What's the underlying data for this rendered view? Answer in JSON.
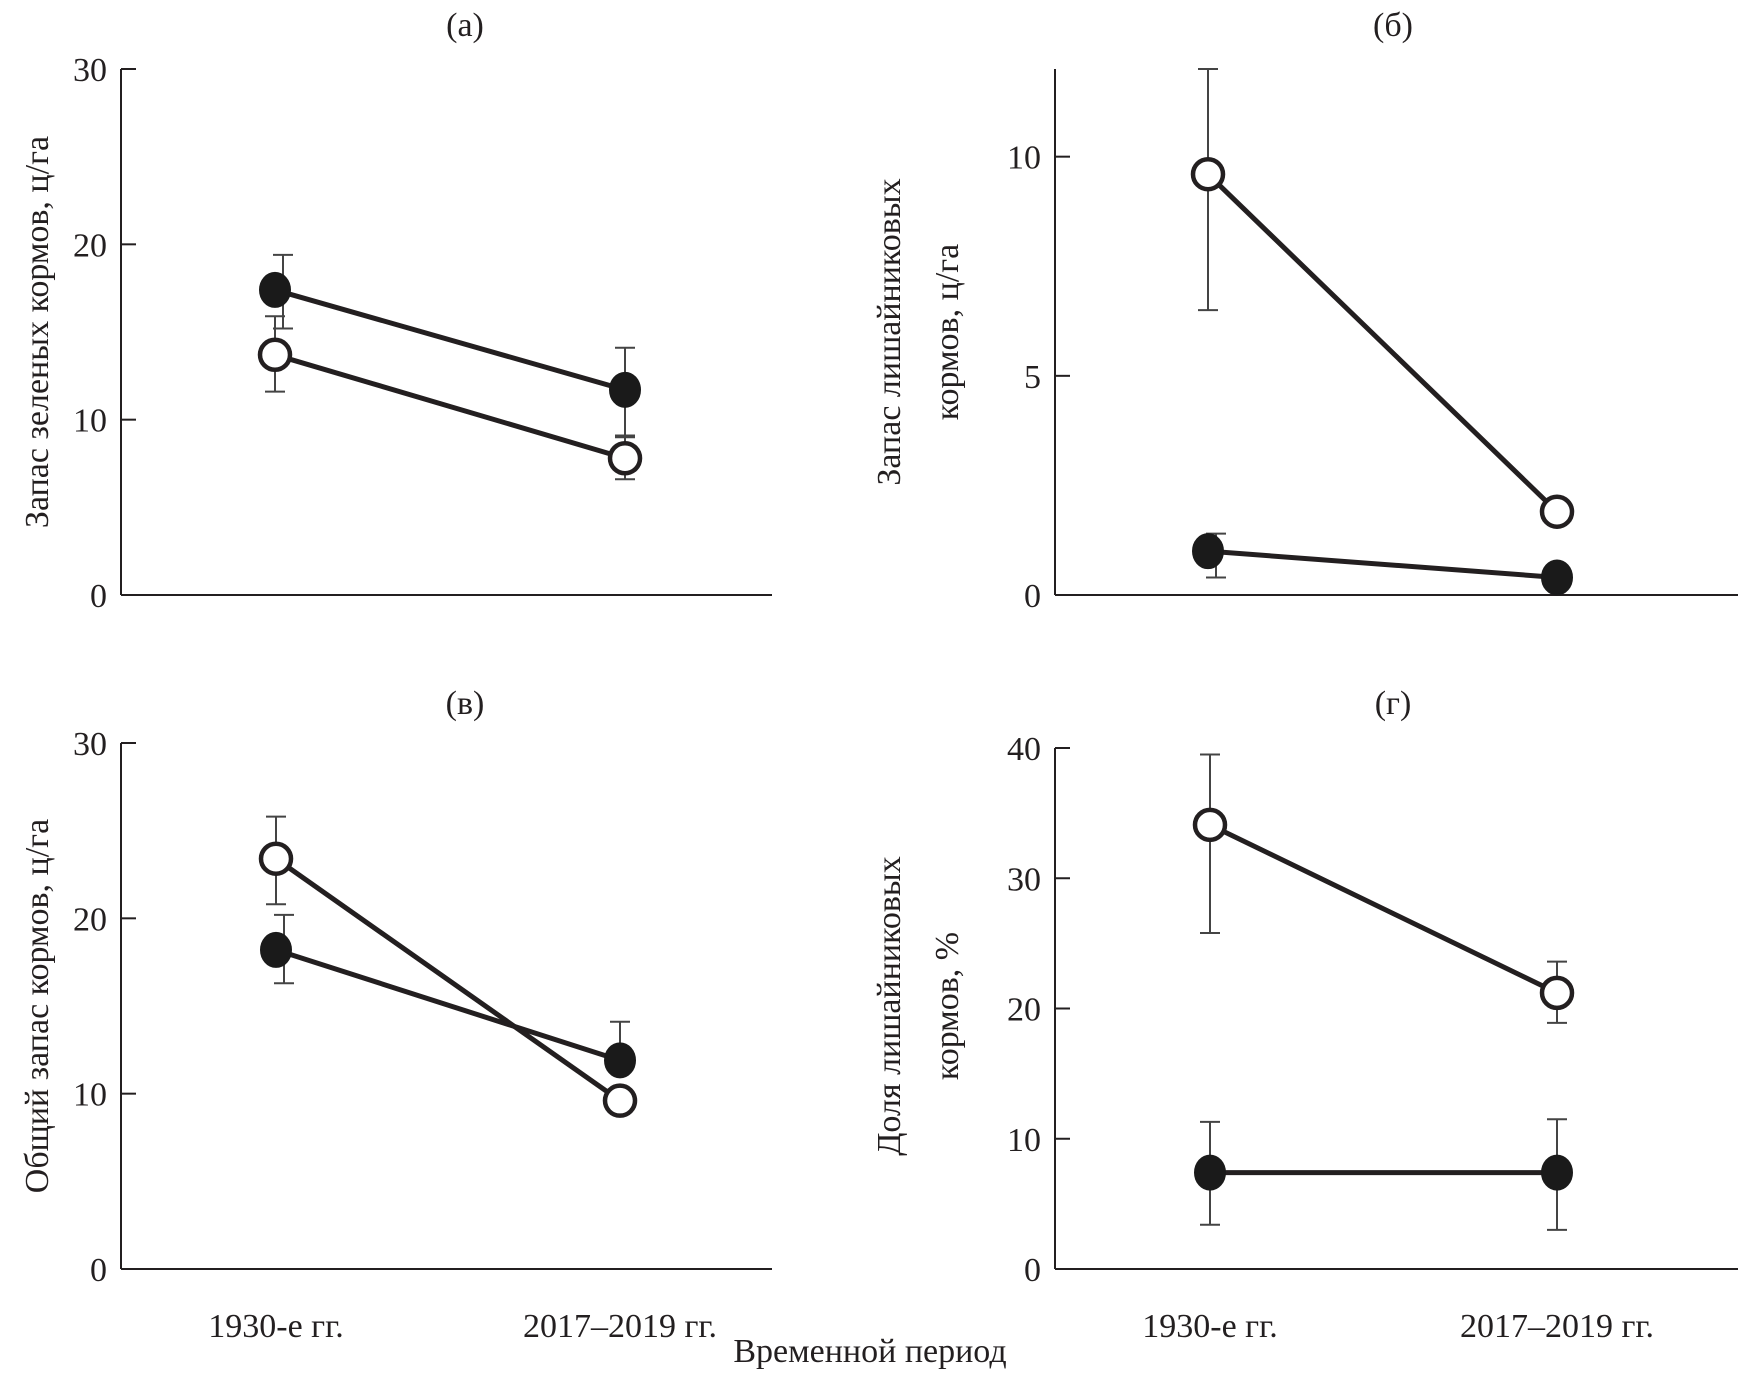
{
  "chart_data": {
    "type": "line",
    "xlabel": "Временной период",
    "categories": [
      "1930-е гг.",
      "2017–2019 гг."
    ],
    "panels": [
      {
        "id": "a",
        "title": "(а)",
        "ylabel": [
          "Запас зеленых кормов, ц/га"
        ],
        "ylim": [
          0,
          30
        ],
        "yticks": [
          0,
          10,
          20,
          30
        ],
        "show_category_labels": false,
        "series": [
          {
            "name": "filled",
            "marker": "filled-circle",
            "values": [
              17.4,
              11.7
            ],
            "err_low": [
              15.2,
              9.1
            ],
            "err_high": [
              19.4,
              14.1
            ]
          },
          {
            "name": "open",
            "marker": "open-circle",
            "values": [
              13.7,
              7.8
            ],
            "err_low": [
              11.6,
              6.6
            ],
            "err_high": [
              15.9,
              9.0
            ]
          }
        ]
      },
      {
        "id": "b",
        "title": "(б)",
        "ylabel": [
          "Запас лишайниковых",
          "кормов, ц/га"
        ],
        "ylim": [
          0,
          12
        ],
        "yticks": [
          0,
          5,
          10
        ],
        "show_category_labels": false,
        "series": [
          {
            "name": "filled",
            "marker": "filled-circle",
            "values": [
              1.0,
              0.4
            ],
            "err_low": [
              0.4,
              null
            ],
            "err_high": [
              1.4,
              null
            ]
          },
          {
            "name": "open",
            "marker": "open-circle",
            "values": [
              9.6,
              1.9
            ],
            "err_low": [
              6.5,
              null
            ],
            "err_high": [
              12.0,
              null
            ]
          }
        ]
      },
      {
        "id": "v",
        "title": "(в)",
        "ylabel": [
          "Общий запас кормов, ц/га"
        ],
        "ylim": [
          0,
          30
        ],
        "yticks": [
          0,
          10,
          20,
          30
        ],
        "show_category_labels": true,
        "series": [
          {
            "name": "filled",
            "marker": "filled-circle",
            "values": [
              18.2,
              11.9
            ],
            "err_low": [
              16.3,
              null
            ],
            "err_high": [
              20.2,
              14.1
            ]
          },
          {
            "name": "open",
            "marker": "open-circle",
            "values": [
              23.4,
              9.6
            ],
            "err_low": [
              20.8,
              null
            ],
            "err_high": [
              25.8,
              null
            ]
          }
        ]
      },
      {
        "id": "g",
        "title": "(г)",
        "ylabel": [
          "Доля лишайниковых",
          "кормов, %"
        ],
        "ylim": [
          0,
          40
        ],
        "yticks": [
          0,
          10,
          20,
          30,
          40
        ],
        "show_category_labels": true,
        "series": [
          {
            "name": "filled",
            "marker": "filled-circle",
            "values": [
              7.4,
              7.4
            ],
            "err_low": [
              3.4,
              3.0
            ],
            "err_high": [
              11.3,
              11.5
            ]
          },
          {
            "name": "open",
            "marker": "open-circle",
            "values": [
              34.1,
              21.2
            ],
            "err_low": [
              25.8,
              18.9
            ],
            "err_high": [
              39.5,
              23.6
            ]
          }
        ]
      }
    ]
  }
}
